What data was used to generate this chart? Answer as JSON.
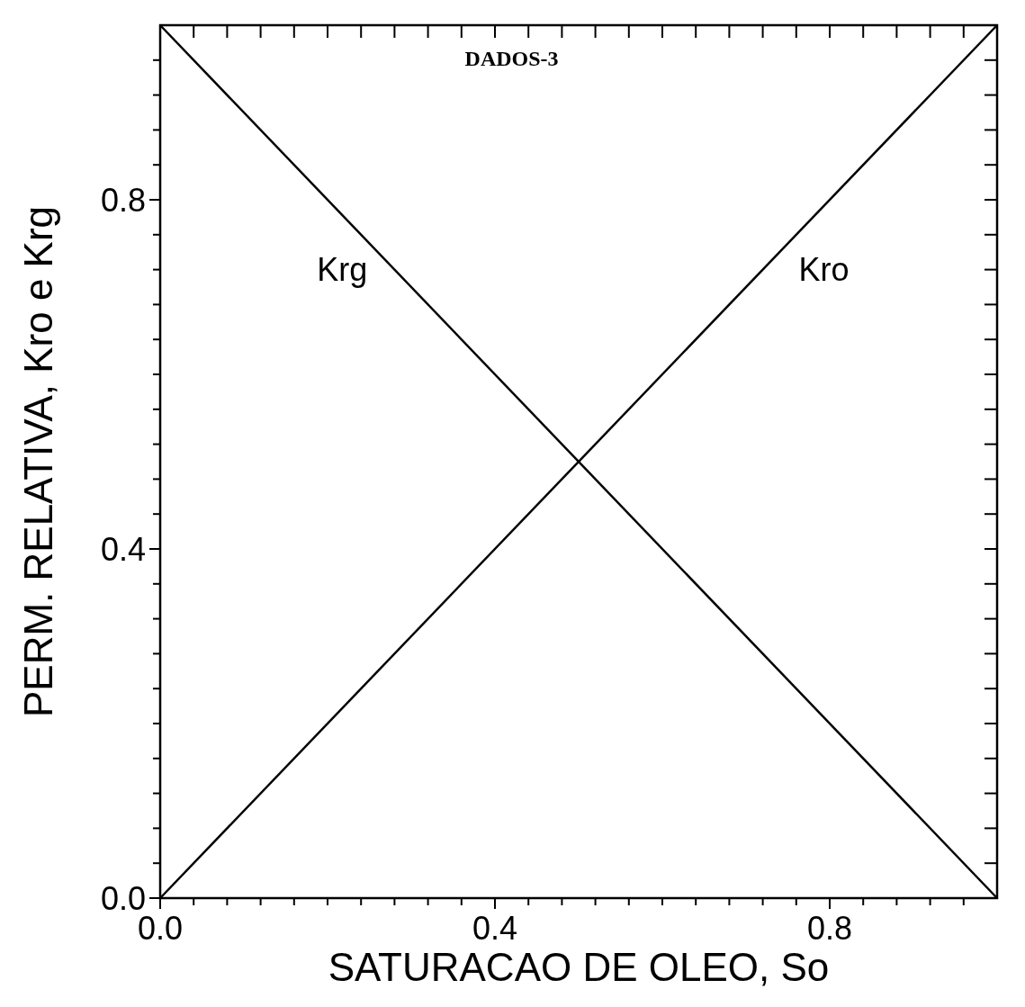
{
  "chart_data": {
    "type": "line",
    "title": "DADOS-3",
    "xlabel": "SATURACAO DE OLEO, So",
    "ylabel": "PERM. RELATIVA, Kro e Krg",
    "xlim": [
      0,
      1
    ],
    "ylim": [
      0,
      1
    ],
    "xticks": [
      {
        "value": 0,
        "label": "0.0"
      },
      {
        "value": 0.04,
        "label": null
      },
      {
        "value": 0.08,
        "label": null
      },
      {
        "value": 0.12,
        "label": null
      },
      {
        "value": 0.16,
        "label": null
      },
      {
        "value": 0.2,
        "label": null
      },
      {
        "value": 0.24,
        "label": null
      },
      {
        "value": 0.28,
        "label": null
      },
      {
        "value": 0.32,
        "label": null
      },
      {
        "value": 0.36,
        "label": null
      },
      0.4,
      {
        "value": 0.44,
        "label": null
      },
      {
        "value": 0.48,
        "label": null
      },
      {
        "value": 0.52,
        "label": null
      },
      {
        "value": 0.56,
        "label": null
      },
      {
        "value": 0.6,
        "label": null
      },
      {
        "value": 0.64,
        "label": null
      },
      {
        "value": 0.68,
        "label": null
      },
      {
        "value": 0.72,
        "label": null
      },
      {
        "value": 0.76,
        "label": null
      },
      0.8,
      {
        "value": 0.84,
        "label": null
      },
      {
        "value": 0.88,
        "label": null
      },
      {
        "value": 0.92,
        "label": null
      },
      {
        "value": 0.96,
        "label": null
      }
    ],
    "yticks": [
      {
        "value": 0,
        "label": "0.0"
      },
      {
        "value": 0.04,
        "label": null
      },
      {
        "value": 0.08,
        "label": null
      },
      {
        "value": 0.12,
        "label": null
      },
      {
        "value": 0.16,
        "label": null
      },
      {
        "value": 0.2,
        "label": null
      },
      {
        "value": 0.24,
        "label": null
      },
      {
        "value": 0.28,
        "label": null
      },
      {
        "value": 0.32,
        "label": null
      },
      {
        "value": 0.36,
        "label": null
      },
      0.4,
      {
        "value": 0.44,
        "label": null
      },
      {
        "value": 0.48,
        "label": null
      },
      {
        "value": 0.52,
        "label": null
      },
      {
        "value": 0.56,
        "label": null
      },
      {
        "value": 0.6,
        "label": null
      },
      {
        "value": 0.64,
        "label": null
      },
      {
        "value": 0.68,
        "label": null
      },
      {
        "value": 0.72,
        "label": null
      },
      {
        "value": 0.76,
        "label": null
      },
      0.8,
      {
        "value": 0.84,
        "label": null
      },
      {
        "value": 0.88,
        "label": null
      },
      {
        "value": 0.92,
        "label": null
      },
      {
        "value": 0.96,
        "label": null
      }
    ],
    "grid": false,
    "legend": false,
    "marker": "none",
    "line_style": "solid",
    "x": [
      0,
      1
    ],
    "series": [
      {
        "name": "Krg",
        "color": "#000000",
        "values": [
          1,
          0
        ]
      },
      {
        "name": "Kro",
        "color": "#000000",
        "values": [
          0,
          1
        ]
      }
    ]
  }
}
